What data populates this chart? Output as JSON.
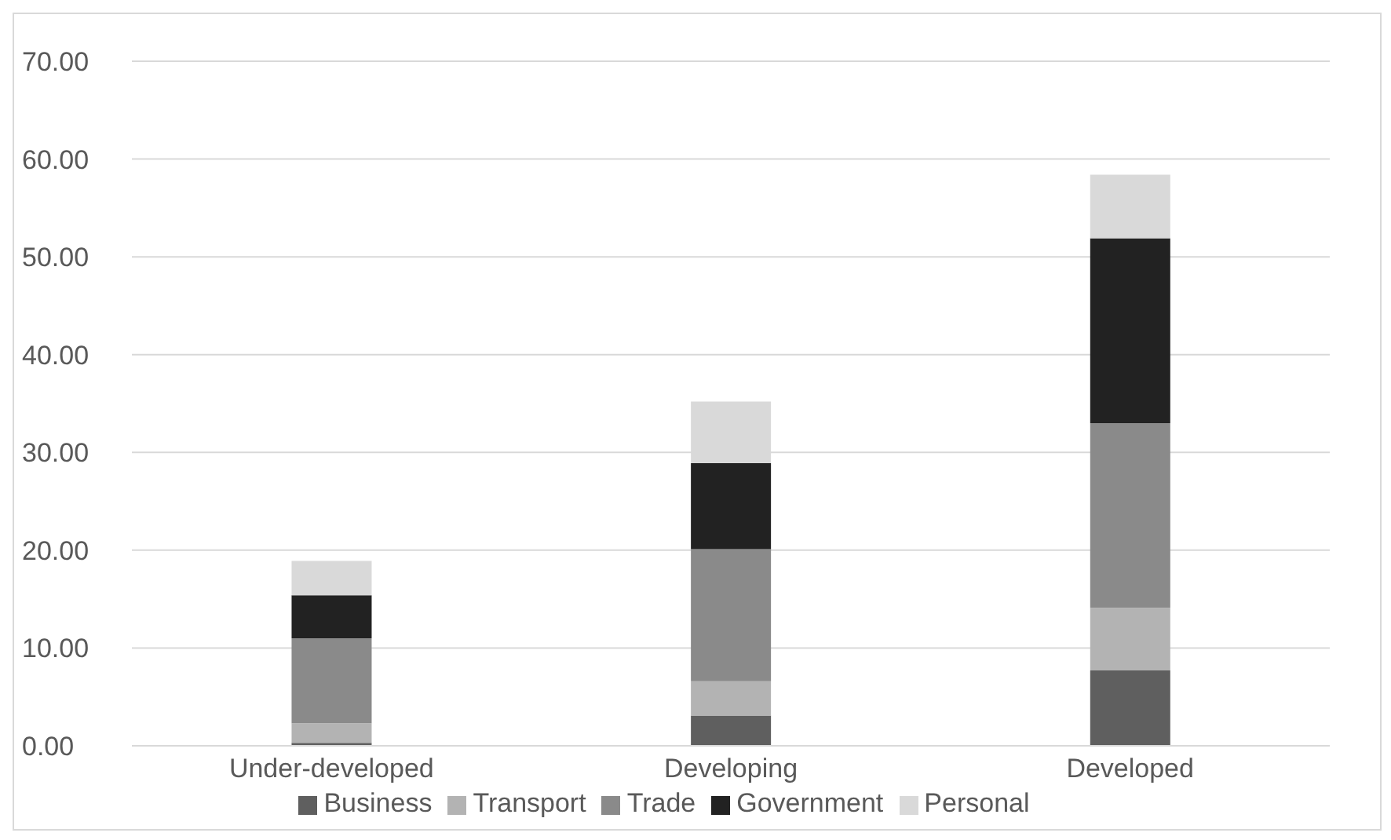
{
  "chart_data": {
    "type": "bar",
    "stacked": true,
    "categories": [
      "Under-developed",
      "Developing",
      "Developed"
    ],
    "series": [
      {
        "name": "Business",
        "color": "#5f5f5f",
        "values": [
          0.3,
          3.1,
          7.7
        ]
      },
      {
        "name": "Transport",
        "color": "#b3b3b3",
        "values": [
          2.0,
          3.5,
          6.4
        ]
      },
      {
        "name": "Trade",
        "color": "#8a8a8a",
        "values": [
          8.7,
          13.5,
          18.9
        ]
      },
      {
        "name": "Government",
        "color": "#222222",
        "values": [
          4.4,
          8.8,
          18.9
        ]
      },
      {
        "name": "Personal",
        "color": "#d9d9d9",
        "values": [
          3.5,
          6.3,
          6.5
        ]
      }
    ],
    "ylim": [
      0,
      70
    ],
    "yticks": [
      {
        "value": 0,
        "label": "0.00"
      },
      {
        "value": 10,
        "label": "10.00"
      },
      {
        "value": 20,
        "label": "20.00"
      },
      {
        "value": 30,
        "label": "30.00"
      },
      {
        "value": 40,
        "label": "40.00"
      },
      {
        "value": 50,
        "label": "50.00"
      },
      {
        "value": 60,
        "label": "60.00"
      },
      {
        "value": 70,
        "label": "70.00"
      }
    ],
    "grid": "y",
    "legend": "bottom"
  }
}
